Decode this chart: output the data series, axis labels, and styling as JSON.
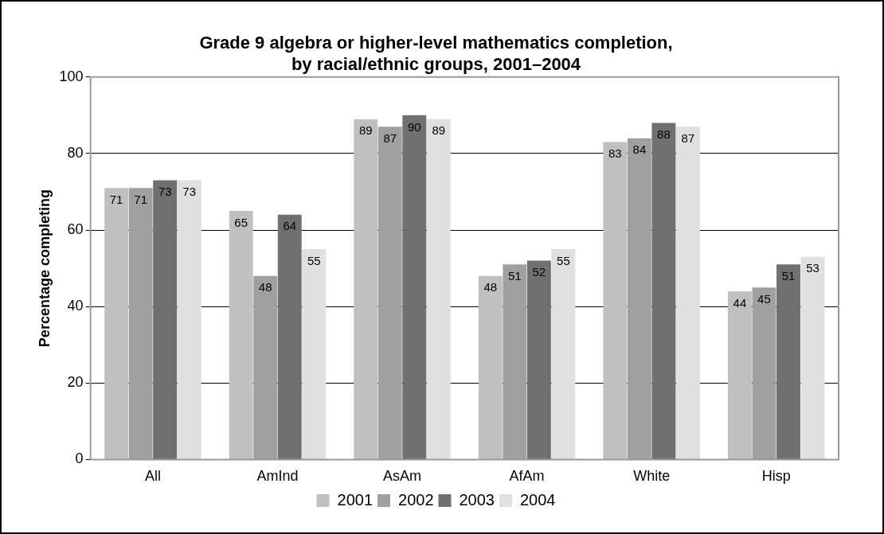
{
  "chart_data": {
    "type": "bar",
    "title": "Grade 9 algebra or higher-level mathematics completion,\nby racial/ethnic groups, 2001–2004",
    "ylabel": "Percentage completing",
    "categories": [
      "All",
      "AmInd",
      "AsAm",
      "AfAm",
      "White",
      "Hisp"
    ],
    "series": [
      {
        "name": "2001",
        "color": "#c0c0c0",
        "values": [
          71,
          65,
          89,
          48,
          83,
          44
        ]
      },
      {
        "name": "2002",
        "color": "#a0a0a0",
        "values": [
          71,
          48,
          87,
          51,
          84,
          45
        ]
      },
      {
        "name": "2003",
        "color": "#707070",
        "values": [
          73,
          64,
          90,
          52,
          88,
          51
        ]
      },
      {
        "name": "2004",
        "color": "#e0e0e0",
        "values": [
          73,
          55,
          89,
          55,
          87,
          53
        ]
      }
    ],
    "ylim": [
      0,
      100
    ],
    "yticks": [
      0,
      20,
      40,
      60,
      80,
      100
    ],
    "grid": "y",
    "legend": "bottom",
    "data_labels": true
  }
}
